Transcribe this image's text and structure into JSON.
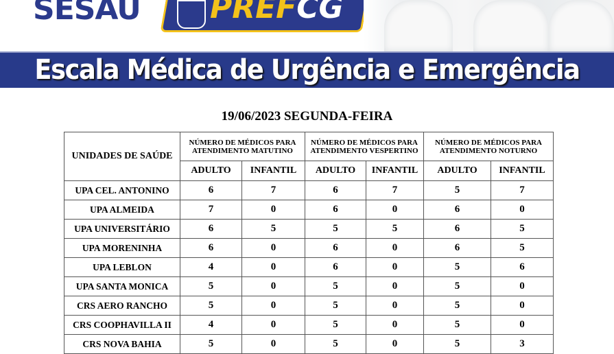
{
  "header": {
    "logo_left": "SESAU",
    "logo_pref": "PREF",
    "logo_cg": "CG",
    "banner_title": "Escala Médica de Urgência e Emergência"
  },
  "date": "19/06/2023 SEGUNDA-FEIRA",
  "table": {
    "unit_header": "UNIDADES DE SAÚDE",
    "groups": [
      "NÚMERO DE MÉDICOS PARA ATENDIMENTO MATUTINO",
      "NÚMERO DE MÉDICOS PARA ATENDIMENTO VESPERTINO",
      "NÚMERO DE MÉDICOS PARA ATENDIMENTO NOTURNO"
    ],
    "subheaders": [
      "ADULTO",
      "INFANTIL",
      "ADULTO",
      "INFANTIL",
      "ADULTO",
      "INFANTIL"
    ],
    "rows": [
      {
        "unit": "UPA CEL. ANTONINO",
        "values": [
          "6",
          "7",
          "6",
          "7",
          "5",
          "7"
        ]
      },
      {
        "unit": "UPA ALMEIDA",
        "values": [
          "7",
          "0",
          "6",
          "0",
          "6",
          "0"
        ]
      },
      {
        "unit": "UPA UNIVERSITÁRIO",
        "values": [
          "6",
          "5",
          "5",
          "5",
          "6",
          "5"
        ]
      },
      {
        "unit": "UPA MORENINHA",
        "values": [
          "6",
          "0",
          "6",
          "0",
          "6",
          "5"
        ]
      },
      {
        "unit": "UPA LEBLON",
        "values": [
          "4",
          "0",
          "6",
          "0",
          "5",
          "6"
        ]
      },
      {
        "unit": "UPA SANTA MONICA",
        "values": [
          "5",
          "0",
          "5",
          "0",
          "5",
          "0"
        ]
      },
      {
        "unit": "CRS AERO RANCHO",
        "values": [
          "5",
          "0",
          "5",
          "0",
          "5",
          "0"
        ]
      },
      {
        "unit": "CRS COOPHAVILLA II",
        "values": [
          "4",
          "0",
          "5",
          "0",
          "5",
          "0"
        ]
      },
      {
        "unit": "CRS NOVA BAHIA",
        "values": [
          "5",
          "0",
          "5",
          "0",
          "5",
          "3"
        ]
      }
    ]
  },
  "colors": {
    "banner": "#283a8a",
    "accent": "#f4c21a"
  }
}
